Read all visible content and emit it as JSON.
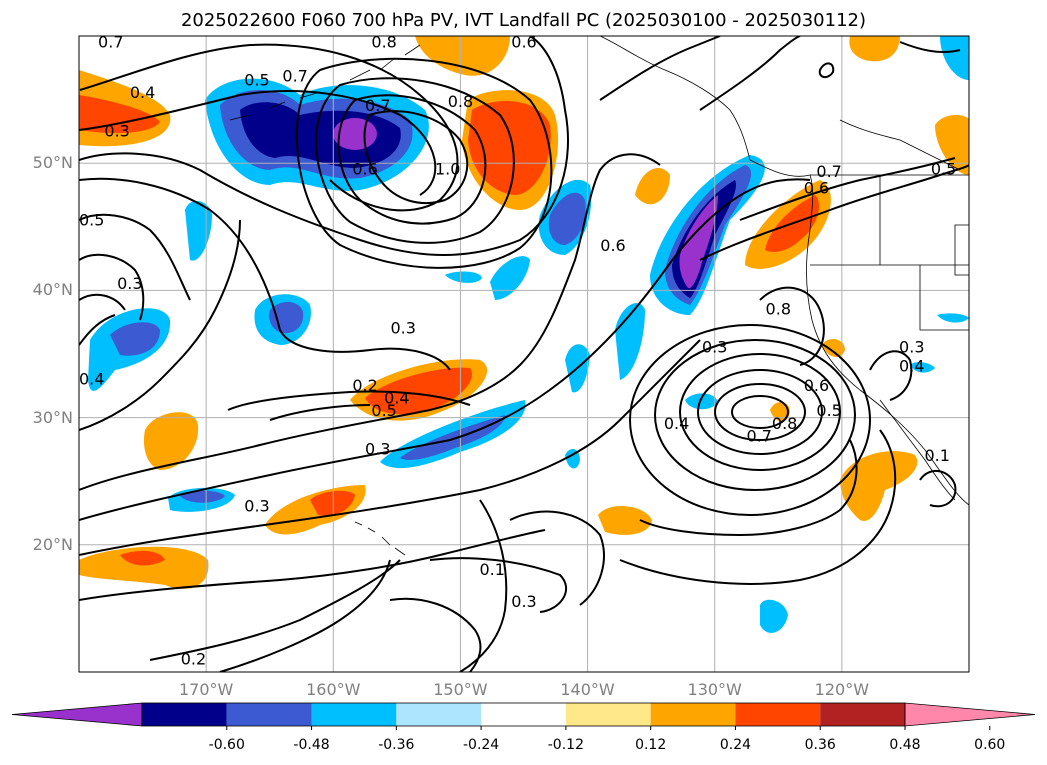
{
  "title": "2025022600 F060 700 hPa PV, IVT Landfall PC (2025030100 - 2025030112)",
  "map": {
    "projection": "equirectangular",
    "lon_range": [
      -180,
      -110
    ],
    "lat_range": [
      10,
      60
    ],
    "lat_ticks": [
      {
        "value": 20,
        "label": "20°N"
      },
      {
        "value": 30,
        "label": "30°N"
      },
      {
        "value": 40,
        "label": "40°N"
      },
      {
        "value": 50,
        "label": "50°N"
      }
    ],
    "lon_ticks": [
      {
        "value": -170,
        "label": "170°W"
      },
      {
        "value": -160,
        "label": "160°W"
      },
      {
        "value": -150,
        "label": "150°W"
      },
      {
        "value": -140,
        "label": "140°W"
      },
      {
        "value": -130,
        "label": "130°W"
      },
      {
        "value": -120,
        "label": "120°W"
      }
    ],
    "grid": true,
    "contour_labels": [
      {
        "text": "0.7",
        "lon": -177.5,
        "lat": 59.5
      },
      {
        "text": "0.8",
        "lon": -156,
        "lat": 59.5
      },
      {
        "text": "0.6",
        "lon": -145,
        "lat": 59.5
      },
      {
        "text": "0.4",
        "lon": -175,
        "lat": 55.5
      },
      {
        "text": "0.5",
        "lon": -166,
        "lat": 56.5
      },
      {
        "text": "0.7",
        "lon": -163,
        "lat": 56.8
      },
      {
        "text": "0.7",
        "lon": -156.5,
        "lat": 54.5
      },
      {
        "text": "0.8",
        "lon": -150,
        "lat": 54.8
      },
      {
        "text": "0.3",
        "lon": -177,
        "lat": 52.5
      },
      {
        "text": "0.6",
        "lon": -157.5,
        "lat": 49.5
      },
      {
        "text": "1.0",
        "lon": -151,
        "lat": 49.5
      },
      {
        "text": "0.5",
        "lon": -179,
        "lat": 45.5
      },
      {
        "text": "0.3",
        "lon": -176,
        "lat": 40.5
      },
      {
        "text": "0.6",
        "lon": -138,
        "lat": 43.5
      },
      {
        "text": "0.3",
        "lon": -154.5,
        "lat": 37
      },
      {
        "text": "0.2",
        "lon": -157.5,
        "lat": 32.5
      },
      {
        "text": "0.4",
        "lon": -155,
        "lat": 31.5
      },
      {
        "text": "0.5",
        "lon": -156,
        "lat": 30.5
      },
      {
        "text": "0.4",
        "lon": -179,
        "lat": 33
      },
      {
        "text": "0.3",
        "lon": -156.5,
        "lat": 27.5
      },
      {
        "text": "0.3",
        "lon": -130,
        "lat": 35.5
      },
      {
        "text": "0.4",
        "lon": -133,
        "lat": 29.5
      },
      {
        "text": "0.8",
        "lon": -124.5,
        "lat": 29.5
      },
      {
        "text": "0.7",
        "lon": -126.5,
        "lat": 28.5
      },
      {
        "text": "0.6",
        "lon": -122,
        "lat": 32.5
      },
      {
        "text": "0.5",
        "lon": -121,
        "lat": 30.5
      },
      {
        "text": "0.3",
        "lon": -166,
        "lat": 23
      },
      {
        "text": "0.1",
        "lon": -147.5,
        "lat": 18
      },
      {
        "text": "0.3",
        "lon": -145,
        "lat": 15.5
      },
      {
        "text": "0.2",
        "lon": -171,
        "lat": 11
      },
      {
        "text": "0.8",
        "lon": -125,
        "lat": 38.5
      },
      {
        "text": "0.6",
        "lon": -122,
        "lat": 48
      },
      {
        "text": "0.7",
        "lon": -121,
        "lat": 49.3
      },
      {
        "text": "0.5",
        "lon": -112,
        "lat": 49.5
      },
      {
        "text": "0.3",
        "lon": -114.5,
        "lat": 35.5
      },
      {
        "text": "0.4",
        "lon": -114.5,
        "lat": 34
      },
      {
        "text": "0.1",
        "lon": -112.5,
        "lat": 27
      }
    ]
  },
  "colorbar": {
    "ticks": [
      "-0.60",
      "-0.48",
      "-0.36",
      "-0.24",
      "-0.12",
      "0.12",
      "0.24",
      "0.36",
      "0.48",
      "0.60"
    ],
    "bins": [
      {
        "range": [
          -999,
          -0.6
        ],
        "color": "#9932cc"
      },
      {
        "range": [
          -0.6,
          -0.48
        ],
        "color": "#00008b"
      },
      {
        "range": [
          -0.48,
          -0.36
        ],
        "color": "#3c5ad2"
      },
      {
        "range": [
          -0.36,
          -0.24
        ],
        "color": "#00bfff"
      },
      {
        "range": [
          -0.24,
          -0.12
        ],
        "color": "#ade4ff"
      },
      {
        "range": [
          -0.12,
          0.12
        ],
        "color": "#ffffff"
      },
      {
        "range": [
          0.12,
          0.24
        ],
        "color": "#ffe88a"
      },
      {
        "range": [
          0.24,
          0.36
        ],
        "color": "#ffa500"
      },
      {
        "range": [
          0.36,
          0.48
        ],
        "color": "#ff4500"
      },
      {
        "range": [
          0.48,
          0.6
        ],
        "color": "#b22222"
      },
      {
        "range": [
          0.6,
          999
        ],
        "color": "#ff88aa"
      }
    ]
  }
}
